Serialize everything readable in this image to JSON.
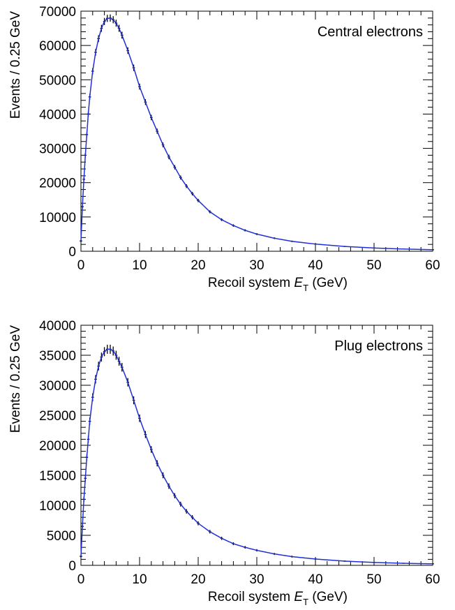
{
  "colors": {
    "curve": "#1f2fd6",
    "data_points": "#000000",
    "axes": "#000000",
    "background": "#ffffff"
  },
  "chart_data": [
    {
      "type": "line",
      "label": "Central electrons",
      "xlabel_prefix": "Recoil system ",
      "xlabel_var": "E",
      "xlabel_sub": "T",
      "xlabel_suffix": " (GeV)",
      "ylabel": "Events / 0.25 GeV",
      "xlim": [
        0,
        60
      ],
      "ylim": [
        0,
        70000
      ],
      "x_ticks": [
        "0",
        "10",
        "20",
        "30",
        "40",
        "50",
        "60"
      ],
      "y_ticks": [
        "0",
        "10000",
        "20000",
        "30000",
        "40000",
        "50000",
        "60000",
        "70000"
      ],
      "grid": false,
      "legend_position": "top-right",
      "series": [
        {
          "style": "histogram with error bars and overlaid fit curve",
          "x": [
            0,
            0.25,
            0.5,
            0.75,
            1,
            1.25,
            1.5,
            2,
            2.5,
            3,
            3.5,
            4,
            4.5,
            5,
            5.5,
            6,
            6.5,
            7,
            8,
            9,
            10,
            11,
            12,
            13,
            14,
            15,
            16,
            17,
            18,
            19,
            20,
            22,
            24,
            26,
            28,
            30,
            33,
            36,
            40,
            45,
            50,
            55,
            60
          ],
          "y": [
            3000,
            13000,
            21000,
            28000,
            34000,
            40000,
            45000,
            52500,
            58000,
            62000,
            65000,
            67000,
            67900,
            68000,
            67500,
            66500,
            65000,
            63000,
            58500,
            53500,
            48000,
            43500,
            39000,
            35000,
            31000,
            27500,
            24500,
            21500,
            19000,
            16800,
            14800,
            11500,
            9200,
            7500,
            6100,
            5000,
            3800,
            2900,
            2100,
            1400,
            950,
            650,
            450
          ]
        }
      ]
    },
    {
      "type": "line",
      "label": "Plug electrons",
      "xlabel_prefix": "Recoil system ",
      "xlabel_var": "E",
      "xlabel_sub": "T",
      "xlabel_suffix": " (GeV)",
      "ylabel": "Events / 0.25 GeV",
      "xlim": [
        0,
        60
      ],
      "ylim": [
        0,
        40000
      ],
      "x_ticks": [
        "0",
        "10",
        "20",
        "30",
        "40",
        "50",
        "60"
      ],
      "y_ticks": [
        "0",
        "5000",
        "10000",
        "15000",
        "20000",
        "25000",
        "30000",
        "35000",
        "40000"
      ],
      "grid": false,
      "legend_position": "top-right",
      "series": [
        {
          "style": "histogram with error bars and overlaid fit curve",
          "x": [
            0,
            0.25,
            0.5,
            0.75,
            1,
            1.25,
            1.5,
            2,
            2.5,
            3,
            3.5,
            4,
            4.5,
            5,
            5.5,
            6,
            6.5,
            7,
            8,
            9,
            10,
            11,
            12,
            13,
            14,
            15,
            16,
            17,
            18,
            19,
            20,
            22,
            24,
            26,
            28,
            30,
            33,
            36,
            40,
            45,
            50,
            55,
            60
          ],
          "y": [
            1500,
            6500,
            11000,
            14500,
            18000,
            21000,
            24000,
            28000,
            31000,
            33200,
            34700,
            35600,
            36000,
            36000,
            35700,
            35000,
            34000,
            33000,
            30500,
            27500,
            24500,
            21800,
            19300,
            17000,
            15000,
            13200,
            11600,
            10200,
            9000,
            8000,
            7000,
            5600,
            4500,
            3600,
            3000,
            2500,
            1900,
            1450,
            1050,
            700,
            480,
            340,
            250
          ]
        }
      ]
    }
  ]
}
